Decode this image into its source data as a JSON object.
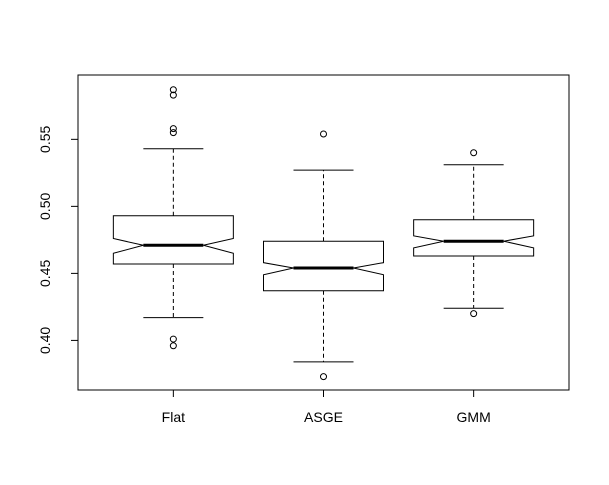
{
  "chart_data": {
    "type": "boxplot",
    "notched": true,
    "color": "#000000",
    "ylim": [
      0.363,
      0.598
    ],
    "yticks": [
      {
        "value": 0.4,
        "label": "0.40"
      },
      {
        "value": 0.45,
        "label": "0.45"
      },
      {
        "value": 0.5,
        "label": "0.50"
      },
      {
        "value": 0.55,
        "label": "0.55"
      }
    ],
    "boxes": [
      {
        "name": "Flat",
        "whisker_low": 0.417,
        "q1": 0.457,
        "notch_low": 0.465,
        "median": 0.471,
        "notch_high": 0.476,
        "q3": 0.493,
        "whisker_high": 0.543,
        "outliers": [
          0.587,
          0.583,
          0.558,
          0.555,
          0.401,
          0.396
        ]
      },
      {
        "name": "ASGE",
        "whisker_low": 0.384,
        "q1": 0.437,
        "notch_low": 0.449,
        "median": 0.454,
        "notch_high": 0.458,
        "q3": 0.474,
        "whisker_high": 0.527,
        "outliers": [
          0.554,
          0.373
        ]
      },
      {
        "name": "GMM",
        "whisker_low": 0.424,
        "q1": 0.463,
        "notch_low": 0.469,
        "median": 0.474,
        "notch_high": 0.478,
        "q3": 0.49,
        "whisker_high": 0.531,
        "outliers": [
          0.54,
          0.42
        ]
      }
    ]
  }
}
